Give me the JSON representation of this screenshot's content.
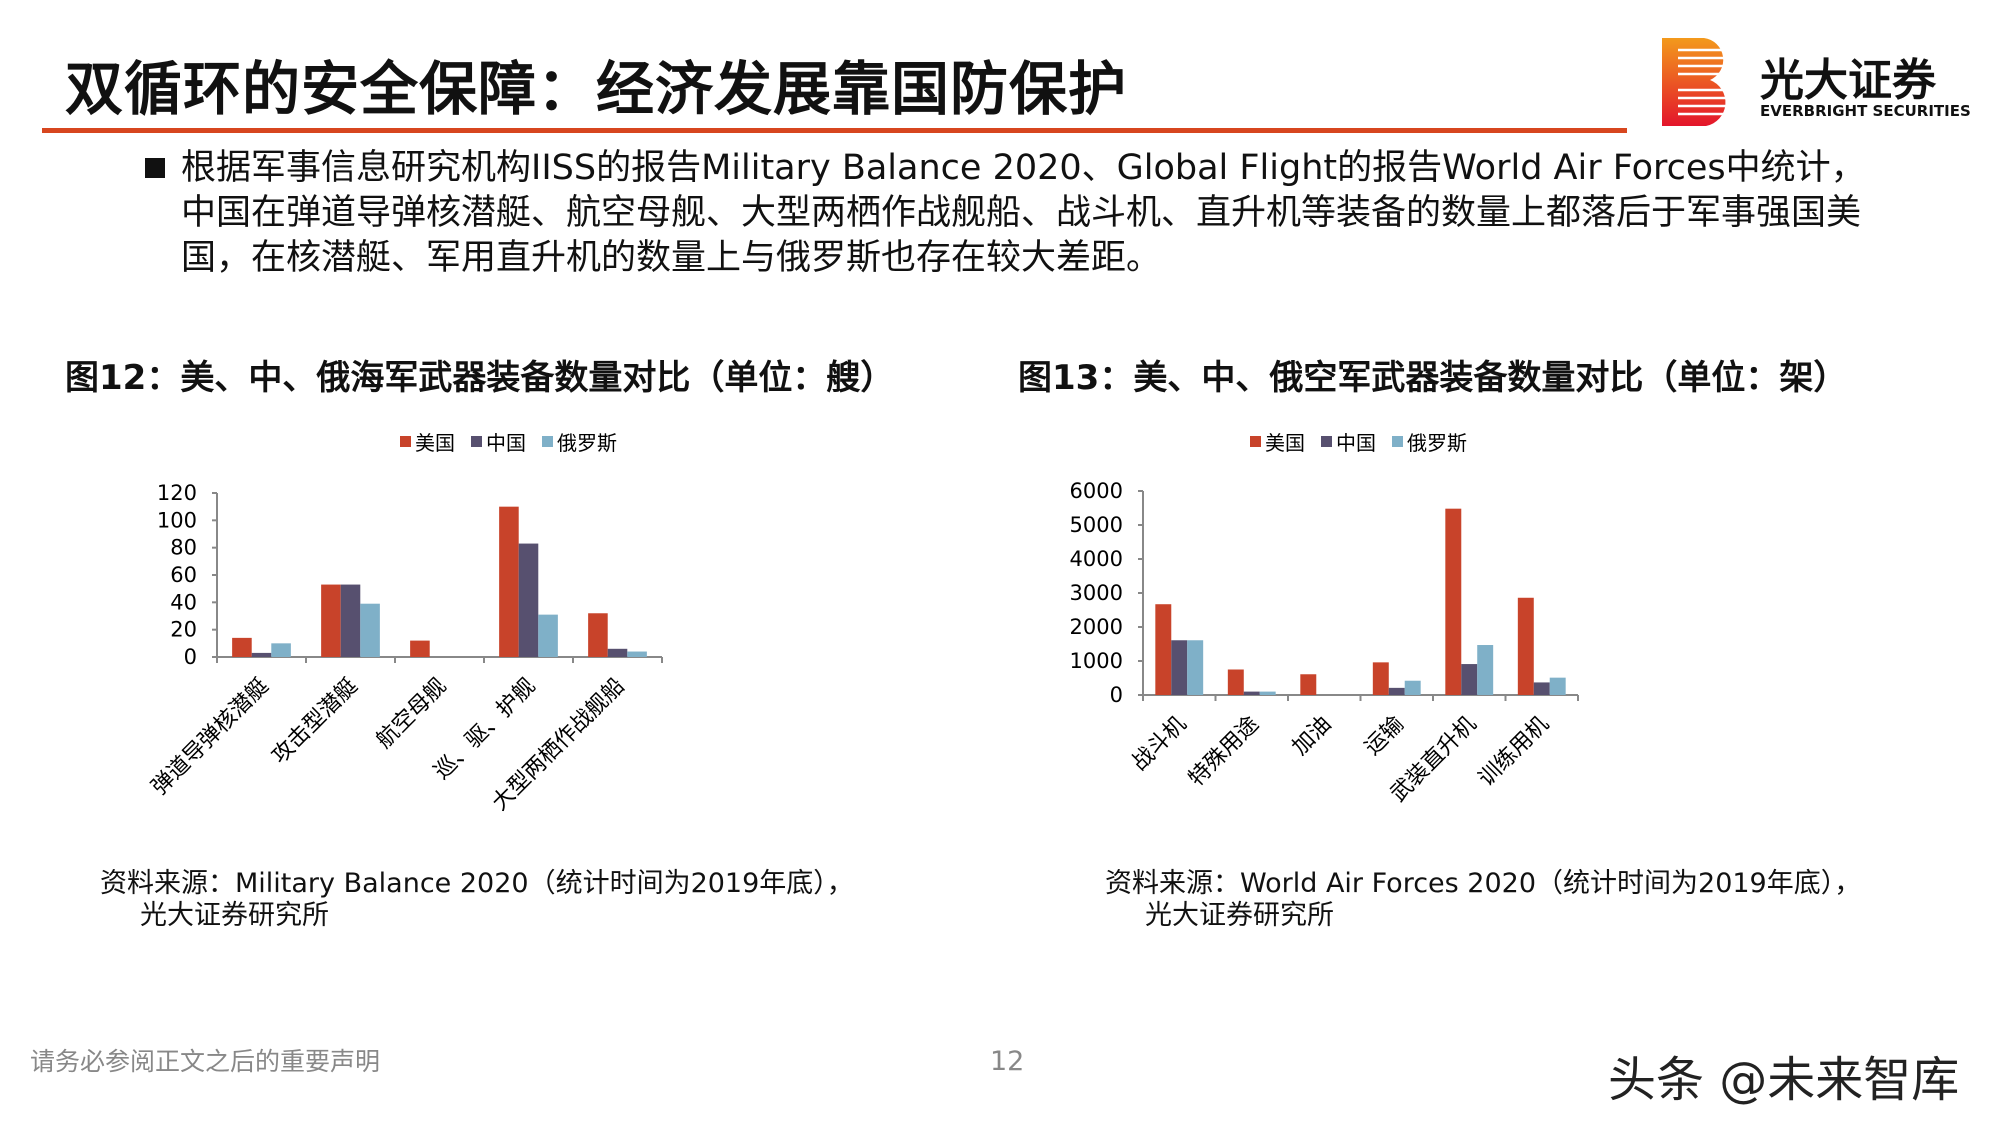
{
  "header": {
    "title": "双循环的安全保障：经济发展靠国防保护",
    "logo_cn": "光大证券",
    "logo_en": "EVERBRIGHT SECURITIES",
    "accent": "#d7461f"
  },
  "bullet": "根据军事信息研究机构IISS的报告Military Balance 2020、Global Flight的报告World Air Forces中统计，中国在弹道导弹核潜艇、航空母舰、大型两栖作战舰船、战斗机、直升机等装备的数量上都落后于军事强国美国，在核潜艇、军用直升机的数量上与俄罗斯也存在较大差距。",
  "chart_data": [
    {
      "type": "bar",
      "title": "图12：美、中、俄海军武器装备数量对比（单位：艘）",
      "categories": [
        "弹道导弹核潜艇",
        "攻击型潜艇",
        "航空母舰",
        "巡、驱、护舰",
        "大型两栖作战舰船"
      ],
      "series": [
        {
          "name": "美国",
          "color": "#c8432a",
          "values": [
            14,
            53,
            12,
            110,
            32
          ]
        },
        {
          "name": "中国",
          "color": "#57506f",
          "values": [
            3,
            53,
            0,
            83,
            6
          ]
        },
        {
          "name": "俄罗斯",
          "color": "#7fb0c8",
          "values": [
            10,
            39,
            0,
            31,
            4
          ]
        }
      ],
      "ylim": [
        0,
        120
      ],
      "yticks": [
        0,
        20,
        40,
        60,
        80,
        100,
        120
      ],
      "legend": "top",
      "grid": false,
      "source": "资料来源：Military Balance 2020（统计时间为2019年底），",
      "source2": "光大证券研究所"
    },
    {
      "type": "bar",
      "title": "图13：美、中、俄空军武器装备数量对比（单位：架）",
      "categories": [
        "战斗机",
        "特殊用途",
        "加油",
        "运输",
        "武装直升机",
        "训练用机"
      ],
      "series": [
        {
          "name": "美国",
          "color": "#c8432a",
          "values": [
            2670,
            750,
            610,
            960,
            5480,
            2860
          ]
        },
        {
          "name": "中国",
          "color": "#57506f",
          "values": [
            1610,
            100,
            0,
            210,
            910,
            370
          ]
        },
        {
          "name": "俄罗斯",
          "color": "#7fb0c8",
          "values": [
            1610,
            100,
            0,
            420,
            1470,
            510
          ]
        }
      ],
      "ylim": [
        0,
        6000
      ],
      "yticks": [
        0,
        1000,
        2000,
        3000,
        4000,
        5000,
        6000
      ],
      "legend": "top",
      "grid": false,
      "source": "资料来源：World Air Forces 2020（统计时间为2019年底），",
      "source2": "光大证券研究所"
    }
  ],
  "footer": {
    "note": "请务必参阅正文之后的重要声明",
    "page": "12",
    "watermark": "头条 @未来智库"
  }
}
